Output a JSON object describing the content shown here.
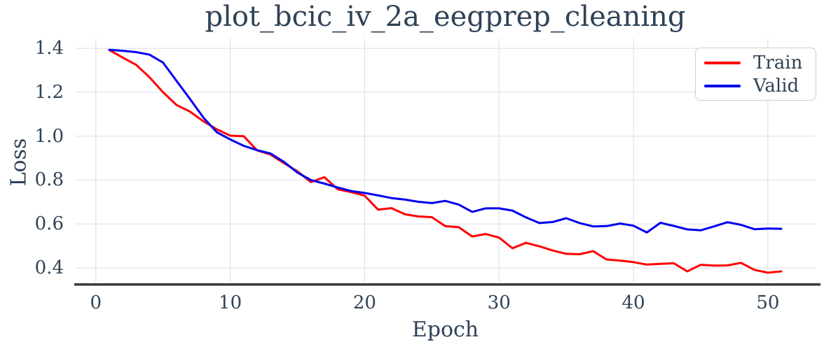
{
  "figure": {
    "title": "plot_bcic_iv_2a_eegprep_cleaning"
  },
  "chart_data": {
    "type": "line",
    "title": "plot_bcic_iv_2a_eegprep_cleaning",
    "xlabel": "Epoch",
    "ylabel": "Loss",
    "legend_position": "upper right",
    "grid": true,
    "x_ticks": [
      0,
      10,
      20,
      30,
      40,
      50
    ],
    "y_ticks": [
      0.4,
      0.6,
      0.8,
      1.0,
      1.2,
      1.4
    ],
    "xlim": [
      -1.5,
      53.5
    ],
    "ylim": [
      0.333,
      1.445
    ],
    "colors": {
      "text": "#2f4256",
      "grid": "#dce3ec",
      "spine": "#3a3a3a",
      "legend_border": "#cfcfcf",
      "background": "#ffffff"
    },
    "x": [
      1,
      2,
      3,
      4,
      5,
      6,
      7,
      8,
      9,
      10,
      11,
      12,
      13,
      14,
      15,
      16,
      17,
      18,
      19,
      20,
      21,
      22,
      23,
      24,
      25,
      26,
      27,
      28,
      29,
      30,
      31,
      32,
      33,
      34,
      35,
      36,
      37,
      38,
      39,
      40,
      41,
      42,
      43,
      44,
      45,
      46,
      47,
      48,
      49,
      50,
      51
    ],
    "series": [
      {
        "name": "Train",
        "color": "#ff0000",
        "values": [
          1.392,
          1.358,
          1.325,
          1.268,
          1.2,
          1.142,
          1.112,
          1.068,
          1.031,
          1.002,
          1.0,
          0.935,
          0.916,
          0.877,
          0.84,
          0.791,
          0.813,
          0.758,
          0.745,
          0.729,
          0.665,
          0.672,
          0.644,
          0.634,
          0.631,
          0.59,
          0.585,
          0.543,
          0.554,
          0.538,
          0.489,
          0.514,
          0.498,
          0.479,
          0.464,
          0.462,
          0.476,
          0.438,
          0.433,
          0.426,
          0.415,
          0.418,
          0.421,
          0.384,
          0.414,
          0.41,
          0.411,
          0.423,
          0.391,
          0.378,
          0.384
        ]
      },
      {
        "name": "Valid",
        "color": "#0000ee",
        "values": [
          1.393,
          1.389,
          1.383,
          1.371,
          1.335,
          1.252,
          1.17,
          1.085,
          1.018,
          0.985,
          0.956,
          0.936,
          0.921,
          0.883,
          0.834,
          0.8,
          0.784,
          0.766,
          0.75,
          0.741,
          0.73,
          0.718,
          0.711,
          0.701,
          0.695,
          0.705,
          0.688,
          0.655,
          0.671,
          0.671,
          0.661,
          0.63,
          0.604,
          0.609,
          0.626,
          0.604,
          0.589,
          0.59,
          0.602,
          0.592,
          0.561,
          0.605,
          0.591,
          0.575,
          0.571,
          0.589,
          0.608,
          0.596,
          0.576,
          0.579,
          0.578
        ]
      }
    ]
  }
}
